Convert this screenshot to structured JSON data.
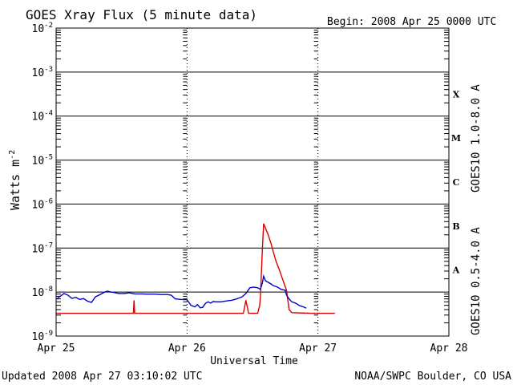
{
  "title": "GOES Xray Flux (5 minute data)",
  "begin_label": "Begin:  2008 Apr 25 0000 UTC",
  "updated_label": "Updated 2008 Apr 27 03:10:02 UTC",
  "source_label": "NOAA/SWPC Boulder, CO USA",
  "colors": {
    "long": "#dd0000",
    "short": "#0000cc",
    "axis": "#000000"
  },
  "chart_data": {
    "type": "line",
    "title": "GOES Xray Flux (5 minute data)",
    "xlabel": "Universal Time",
    "ylabel": "Watts m",
    "ylabel_sup": "-2",
    "y_scale": "log",
    "ylim": [
      1e-09,
      0.01
    ],
    "xlim_days": [
      0,
      3
    ],
    "x_ticks": [
      "Apr 25",
      "Apr 26",
      "Apr 27",
      "Apr 28"
    ],
    "y_ticks": [
      {
        "base": "10",
        "exp": "-9",
        "value": 1e-09
      },
      {
        "base": "10",
        "exp": "-8",
        "value": 1e-08
      },
      {
        "base": "10",
        "exp": "-7",
        "value": 1e-07
      },
      {
        "base": "10",
        "exp": "-6",
        "value": 1e-06
      },
      {
        "base": "10",
        "exp": "-5",
        "value": 1e-05
      },
      {
        "base": "10",
        "exp": "-4",
        "value": 0.0001
      },
      {
        "base": "10",
        "exp": "-3",
        "value": 0.001
      },
      {
        "base": "10",
        "exp": "-2",
        "value": 0.01
      }
    ],
    "grid": true,
    "flare_classes": [
      {
        "label": "A",
        "low": 1e-08,
        "high": 1e-07
      },
      {
        "label": "B",
        "low": 1e-07,
        "high": 1e-06
      },
      {
        "label": "C",
        "low": 1e-06,
        "high": 1e-05
      },
      {
        "label": "M",
        "low": 1e-05,
        "high": 0.0001
      },
      {
        "label": "X",
        "low": 0.0001,
        "high": 0.001
      }
    ],
    "series": [
      {
        "name": "GOES10 1.0-8.0 A",
        "color": "#dd0000",
        "points": [
          [
            0.0,
            3.3e-09
          ],
          [
            0.59,
            3.3e-09
          ],
          [
            0.595,
            6.5e-09
          ],
          [
            0.6,
            3.3e-09
          ],
          [
            1.0,
            3.3e-09
          ],
          [
            1.43,
            3.3e-09
          ],
          [
            1.45,
            6.5e-09
          ],
          [
            1.47,
            3.3e-09
          ],
          [
            1.54,
            3.3e-09
          ],
          [
            1.555,
            5e-09
          ],
          [
            1.56,
            7.5e-09
          ],
          [
            1.575,
            9e-08
          ],
          [
            1.585,
            3.6e-07
          ],
          [
            1.6,
            2.8e-07
          ],
          [
            1.62,
            2e-07
          ],
          [
            1.64,
            1.3e-07
          ],
          [
            1.66,
            8e-08
          ],
          [
            1.68,
            5e-08
          ],
          [
            1.7,
            3.5e-08
          ],
          [
            1.72,
            2.4e-08
          ],
          [
            1.74,
            1.6e-08
          ],
          [
            1.76,
            1.1e-08
          ],
          [
            1.77,
            6.5e-09
          ],
          [
            1.78,
            4e-09
          ],
          [
            1.8,
            3.4e-09
          ],
          [
            1.95,
            3.3e-09
          ],
          [
            2.13,
            3.3e-09
          ]
        ]
      },
      {
        "name": "GOES10 0.5-4.0 A",
        "color": "#0000cc",
        "points": [
          [
            0.0,
            6.8e-09
          ],
          [
            0.03,
            8e-09
          ],
          [
            0.06,
            9.3e-09
          ],
          [
            0.09,
            8.5e-09
          ],
          [
            0.12,
            7.2e-09
          ],
          [
            0.15,
            7.6e-09
          ],
          [
            0.18,
            6.8e-09
          ],
          [
            0.21,
            7.1e-09
          ],
          [
            0.24,
            6.2e-09
          ],
          [
            0.27,
            5.8e-09
          ],
          [
            0.3,
            7.8e-09
          ],
          [
            0.33,
            8.6e-09
          ],
          [
            0.36,
            9.6e-09
          ],
          [
            0.39,
            1.05e-08
          ],
          [
            0.42,
            1e-08
          ],
          [
            0.45,
            9.7e-09
          ],
          [
            0.48,
            9.3e-09
          ],
          [
            0.52,
            9.3e-09
          ],
          [
            0.56,
            9.6e-09
          ],
          [
            0.6,
            9.1e-09
          ],
          [
            0.65,
            9.1e-09
          ],
          [
            0.7,
            9e-09
          ],
          [
            0.75,
            9e-09
          ],
          [
            0.8,
            8.8e-09
          ],
          [
            0.85,
            8.8e-09
          ],
          [
            0.88,
            8.5e-09
          ],
          [
            0.91,
            7e-09
          ],
          [
            0.95,
            6.8e-09
          ],
          [
            1.0,
            6.7e-09
          ],
          [
            1.03,
            5e-09
          ],
          [
            1.06,
            4.6e-09
          ],
          [
            1.08,
            5.2e-09
          ],
          [
            1.1,
            4.4e-09
          ],
          [
            1.12,
            4.5e-09
          ],
          [
            1.14,
            5.5e-09
          ],
          [
            1.16,
            6e-09
          ],
          [
            1.18,
            5.6e-09
          ],
          [
            1.2,
            6.1e-09
          ],
          [
            1.22,
            6e-09
          ],
          [
            1.26,
            6e-09
          ],
          [
            1.3,
            6.3e-09
          ],
          [
            1.34,
            6.5e-09
          ],
          [
            1.38,
            7e-09
          ],
          [
            1.42,
            7.8e-09
          ],
          [
            1.45,
            9.3e-09
          ],
          [
            1.48,
            1.25e-08
          ],
          [
            1.51,
            1.3e-08
          ],
          [
            1.54,
            1.25e-08
          ],
          [
            1.56,
            1.15e-08
          ],
          [
            1.575,
            1.6e-08
          ],
          [
            1.585,
            2.3e-08
          ],
          [
            1.6,
            1.8e-08
          ],
          [
            1.63,
            1.6e-08
          ],
          [
            1.66,
            1.4e-08
          ],
          [
            1.69,
            1.3e-08
          ],
          [
            1.72,
            1.15e-08
          ],
          [
            1.75,
            1.1e-08
          ],
          [
            1.76,
            8.5e-09
          ],
          [
            1.78,
            7e-09
          ],
          [
            1.8,
            6e-09
          ],
          [
            1.83,
            5.6e-09
          ],
          [
            1.86,
            4.9e-09
          ],
          [
            1.89,
            4.6e-09
          ],
          [
            1.91,
            4.3e-09
          ]
        ]
      }
    ]
  }
}
